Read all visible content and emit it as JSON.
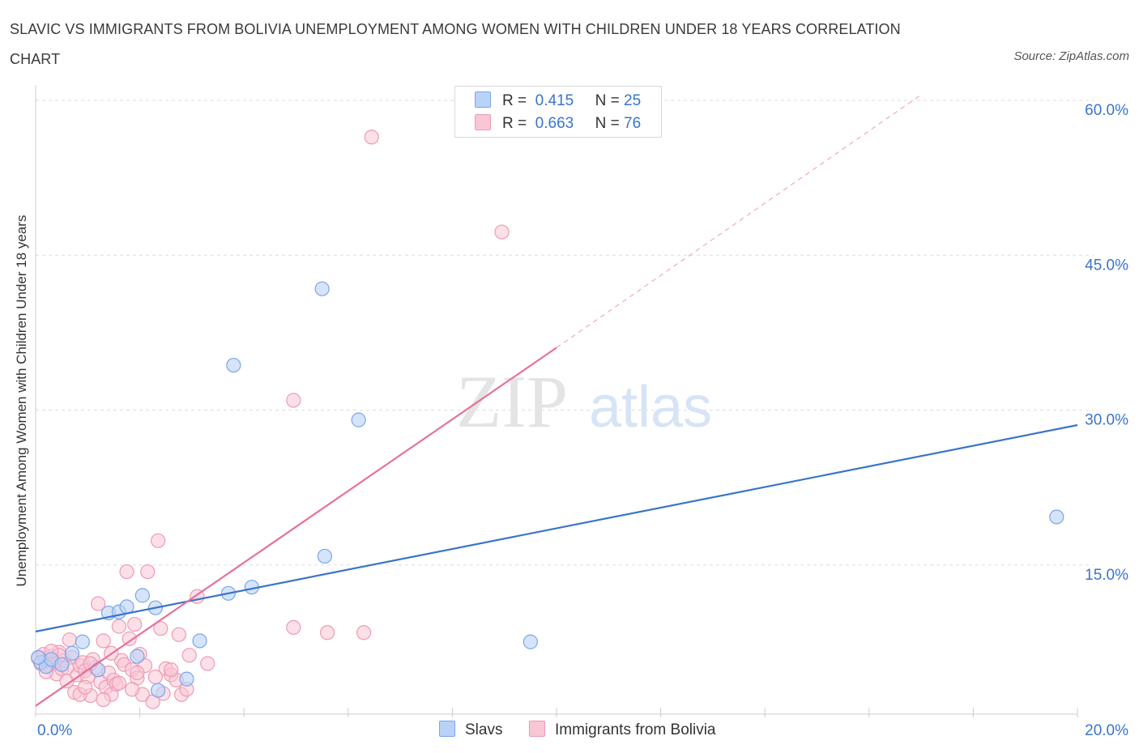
{
  "title": "SLAVIC VS IMMIGRANTS FROM BOLIVIA UNEMPLOYMENT AMONG WOMEN WITH CHILDREN UNDER 18 YEARS CORRELATION CHART",
  "source": "Source: ZipAtlas.com",
  "watermark": {
    "zip": "ZIP",
    "atlas": "atlas"
  },
  "colors": {
    "blue": "#3a74c9",
    "pink": "#e8709a",
    "blue_fill": "#b9d2f7",
    "pink_fill": "#f9c6d5",
    "grid": "#dddddd"
  },
  "legend": {
    "rows": [
      {
        "r_label": "R =",
        "r_value": "0.415",
        "n_label": "N =",
        "n_value": "25"
      },
      {
        "r_label": "R =",
        "r_value": "0.663",
        "n_label": "N =",
        "n_value": "76"
      }
    ]
  },
  "bottom_legend": [
    "Slavs",
    "Immigrants from Bolivia"
  ],
  "chart_data": {
    "type": "scatter",
    "title": "SLAVIC VS IMMIGRANTS FROM BOLIVIA UNEMPLOYMENT AMONG WOMEN WITH CHILDREN UNDER 18 YEARS CORRELATION CHART",
    "xlabel": "",
    "ylabel": "Unemployment Among Women with Children Under 18 years",
    "xlim": [
      0,
      20
    ],
    "ylim": [
      0,
      60
    ],
    "x_tick_labels": [
      "0.0%",
      "20.0%"
    ],
    "y_ticks": [
      15,
      30,
      45,
      60
    ],
    "y_tick_labels": [
      "15.0%",
      "30.0%",
      "45.0%",
      "60.0%"
    ],
    "grid": true,
    "legend_position": "top-center",
    "series": [
      {
        "name": "Slavs",
        "color": "#3a74c9",
        "R": 0.415,
        "N": 25,
        "trend": {
          "x": [
            0,
            20
          ],
          "y": [
            8.0,
            28.0
          ],
          "dashed_extension": false
        },
        "points": [
          [
            0.1,
            5.0
          ],
          [
            0.2,
            4.6
          ],
          [
            0.3,
            5.3
          ],
          [
            0.5,
            4.8
          ],
          [
            0.7,
            5.9
          ],
          [
            0.9,
            7.0
          ],
          [
            1.2,
            4.3
          ],
          [
            1.4,
            9.8
          ],
          [
            1.6,
            9.9
          ],
          [
            1.75,
            10.4
          ],
          [
            1.95,
            5.6
          ],
          [
            2.05,
            11.5
          ],
          [
            2.3,
            10.3
          ],
          [
            2.35,
            2.3
          ],
          [
            2.9,
            3.4
          ],
          [
            3.15,
            7.1
          ],
          [
            3.7,
            11.7
          ],
          [
            3.8,
            33.8
          ],
          [
            4.15,
            12.3
          ],
          [
            5.5,
            41.2
          ],
          [
            5.55,
            15.3
          ],
          [
            6.2,
            28.5
          ],
          [
            9.5,
            7.0
          ],
          [
            19.6,
            19.1
          ],
          [
            0.05,
            5.5
          ]
        ]
      },
      {
        "name": "Immigrants from Bolivia",
        "color": "#e8709a",
        "R": 0.663,
        "N": 76,
        "trend": {
          "x": [
            0,
            10
          ],
          "y": [
            0.8,
            35.5
          ],
          "dashed_extension": {
            "x": [
              10,
              17
            ],
            "y": [
              35.5,
              60
            ]
          }
        },
        "points": [
          [
            0.05,
            5.4
          ],
          [
            0.1,
            4.9
          ],
          [
            0.15,
            5.8
          ],
          [
            0.2,
            5.1
          ],
          [
            0.25,
            4.7
          ],
          [
            0.3,
            5.6
          ],
          [
            0.35,
            5.0
          ],
          [
            0.4,
            3.9
          ],
          [
            0.45,
            6.0
          ],
          [
            0.5,
            4.4
          ],
          [
            0.55,
            5.2
          ],
          [
            0.6,
            3.2
          ],
          [
            0.65,
            7.2
          ],
          [
            0.7,
            5.5
          ],
          [
            0.75,
            2.1
          ],
          [
            0.8,
            3.8
          ],
          [
            0.85,
            4.7
          ],
          [
            0.9,
            5.0
          ],
          [
            0.95,
            4.2
          ],
          [
            1.0,
            3.6
          ],
          [
            1.05,
            1.8
          ],
          [
            1.1,
            5.3
          ],
          [
            1.15,
            4.5
          ],
          [
            1.2,
            10.7
          ],
          [
            1.25,
            3.1
          ],
          [
            1.3,
            7.1
          ],
          [
            1.35,
            2.6
          ],
          [
            1.4,
            4.0
          ],
          [
            1.45,
            1.9
          ],
          [
            1.5,
            3.3
          ],
          [
            1.55,
            2.9
          ],
          [
            1.6,
            8.5
          ],
          [
            1.65,
            5.2
          ],
          [
            1.7,
            4.8
          ],
          [
            1.75,
            13.8
          ],
          [
            1.8,
            7.3
          ],
          [
            1.85,
            4.3
          ],
          [
            1.9,
            8.7
          ],
          [
            1.95,
            3.5
          ],
          [
            2.0,
            5.8
          ],
          [
            2.05,
            1.9
          ],
          [
            2.1,
            4.7
          ],
          [
            2.15,
            13.8
          ],
          [
            2.25,
            1.2
          ],
          [
            2.35,
            16.8
          ],
          [
            2.4,
            8.3
          ],
          [
            2.45,
            2.0
          ],
          [
            2.5,
            4.4
          ],
          [
            2.6,
            3.8
          ],
          [
            2.7,
            3.3
          ],
          [
            2.75,
            7.7
          ],
          [
            2.8,
            1.9
          ],
          [
            2.9,
            2.4
          ],
          [
            2.95,
            5.7
          ],
          [
            3.1,
            11.4
          ],
          [
            3.3,
            4.9
          ],
          [
            4.95,
            30.4
          ],
          [
            4.95,
            8.4
          ],
          [
            5.6,
            7.9
          ],
          [
            6.3,
            7.9
          ],
          [
            6.45,
            55.9
          ],
          [
            8.95,
            46.7
          ],
          [
            0.2,
            4.1
          ],
          [
            0.45,
            5.7
          ],
          [
            0.85,
            1.9
          ],
          [
            1.05,
            4.9
          ],
          [
            1.3,
            1.4
          ],
          [
            1.6,
            3.0
          ],
          [
            1.85,
            2.4
          ],
          [
            2.3,
            3.6
          ],
          [
            2.6,
            4.3
          ],
          [
            0.3,
            6.1
          ],
          [
            0.6,
            4.5
          ],
          [
            0.95,
            2.6
          ],
          [
            1.45,
            5.9
          ],
          [
            1.95,
            4.0
          ]
        ]
      }
    ]
  }
}
